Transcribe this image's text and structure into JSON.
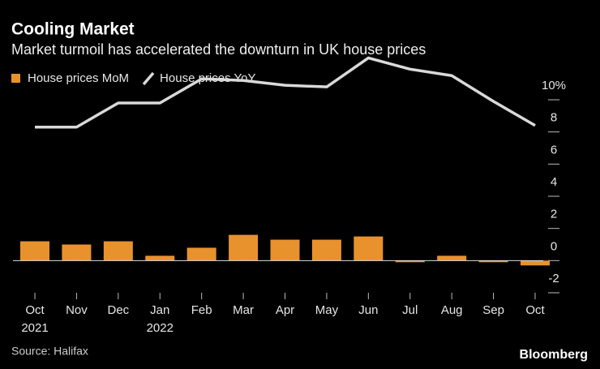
{
  "chart_data": {
    "type": "bar_line",
    "title": "Cooling Market",
    "subtitle": "Market turmoil has accelerated the downturn in UK house prices",
    "source": "Source: Halifax",
    "brand": "Bloomberg",
    "categories": [
      "Oct",
      "Nov",
      "Dec",
      "Jan",
      "Feb",
      "Mar",
      "Apr",
      "May",
      "Jun",
      "Jul",
      "Aug",
      "Sep",
      "Oct"
    ],
    "category_years": [
      "2021",
      null,
      null,
      "2022",
      null,
      null,
      null,
      null,
      null,
      null,
      null,
      null,
      null
    ],
    "series": [
      {
        "name": "House prices MoM",
        "type": "bar",
        "color": "#e8922e",
        "values": [
          1.2,
          1.0,
          1.2,
          0.3,
          0.8,
          1.6,
          1.3,
          1.3,
          1.5,
          -0.1,
          0.3,
          -0.1,
          -0.3
        ]
      },
      {
        "name": "House prices YoY",
        "type": "line",
        "color": "#d9d9d9",
        "values": [
          8.3,
          8.3,
          9.8,
          9.8,
          11.3,
          11.2,
          10.9,
          10.8,
          12.6,
          11.9,
          11.5,
          9.9,
          8.4
        ]
      }
    ],
    "ylim": [
      -2,
      13
    ],
    "yticks": [
      -2,
      0,
      2,
      4,
      6,
      8,
      {
        "value": 10,
        "label": "10%"
      }
    ]
  }
}
